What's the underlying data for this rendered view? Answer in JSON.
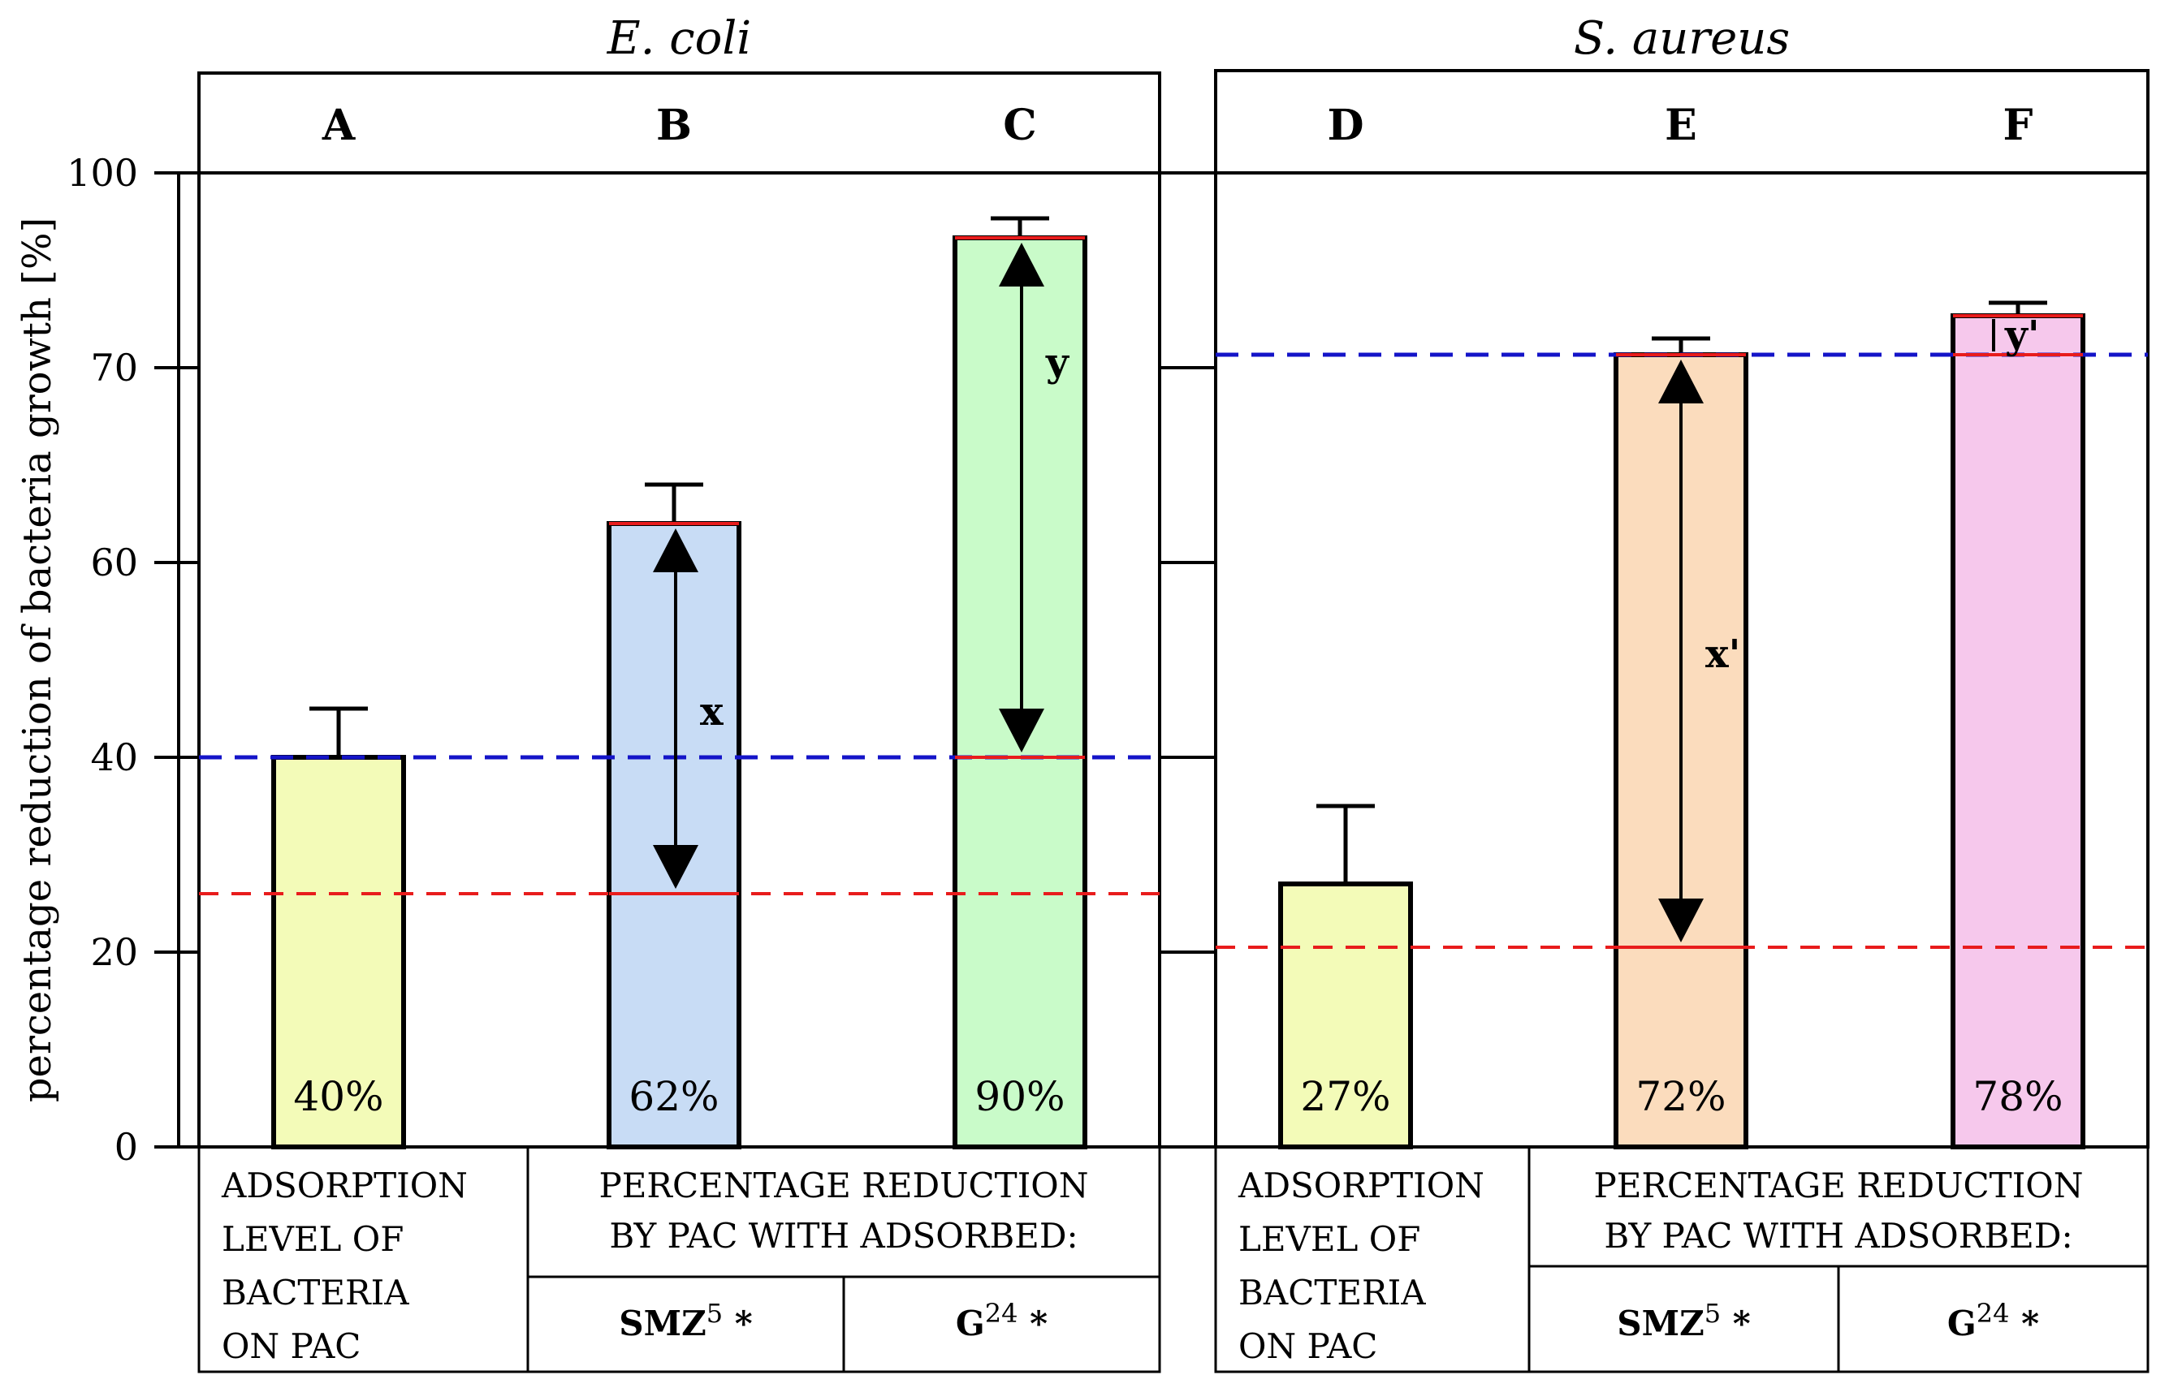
{
  "chart_data": {
    "type": "bar",
    "ylabel": "percentage reduction of bacteria growth [%]",
    "y_ticks": [
      "0",
      "20",
      "40",
      "60",
      "70",
      "100"
    ],
    "panels": [
      {
        "title": "E. coli",
        "categories": [
          "A",
          "B",
          "C"
        ],
        "values": [
          40,
          62,
          90
        ],
        "value_labels": [
          "40%",
          "62%",
          "90%"
        ],
        "error_plus": [
          5,
          2,
          3
        ],
        "colors": [
          "#f3fbb8",
          "#c8dcf5",
          "#c9fbc9"
        ],
        "reference_blue": 40,
        "reference_red": 26,
        "arrows": [
          {
            "label": "x",
            "bar": 1,
            "from": 62,
            "to": 26
          },
          {
            "label": "y",
            "bar": 2,
            "from": 90,
            "to": 40
          }
        ],
        "captions": {
          "adsorption": [
            "ADSORPTION",
            "LEVEL OF",
            "BACTERIA",
            "ON PAC"
          ],
          "reduction": [
            "PERCENTAGE REDUCTION",
            "BY PAC WITH ADSORBED:"
          ],
          "compound1": {
            "name": "SMZ",
            "sup": "5",
            "star": " *"
          },
          "compound2": {
            "name": "G",
            "sup": "24",
            "star": " *"
          }
        }
      },
      {
        "title": "S. aureus",
        "categories": [
          "D",
          "E",
          "F"
        ],
        "values": [
          27,
          72,
          78
        ],
        "value_labels": [
          "27%",
          "72%",
          "78%"
        ],
        "error_plus": [
          8,
          2.5,
          2
        ],
        "colors": [
          "#f3fbb8",
          "#fbdcbd",
          "#f6c8ec"
        ],
        "reference_blue": 72,
        "reference_red": 20.5,
        "arrows": [
          {
            "label": "x'",
            "bar": 1,
            "from": 72,
            "to": 20.5
          },
          {
            "label": "y'",
            "bar": 2,
            "from": 78,
            "to": 72
          }
        ],
        "captions": {
          "adsorption": [
            "ADSORPTION",
            "LEVEL OF",
            "BACTERIA",
            "ON PAC"
          ],
          "reduction": [
            "PERCENTAGE REDUCTION",
            "BY PAC WITH ADSORBED:"
          ],
          "compound1": {
            "name": "SMZ",
            "sup": "5",
            "star": " *"
          },
          "compound2": {
            "name": "G",
            "sup": "24",
            "star": " *"
          }
        }
      }
    ]
  }
}
